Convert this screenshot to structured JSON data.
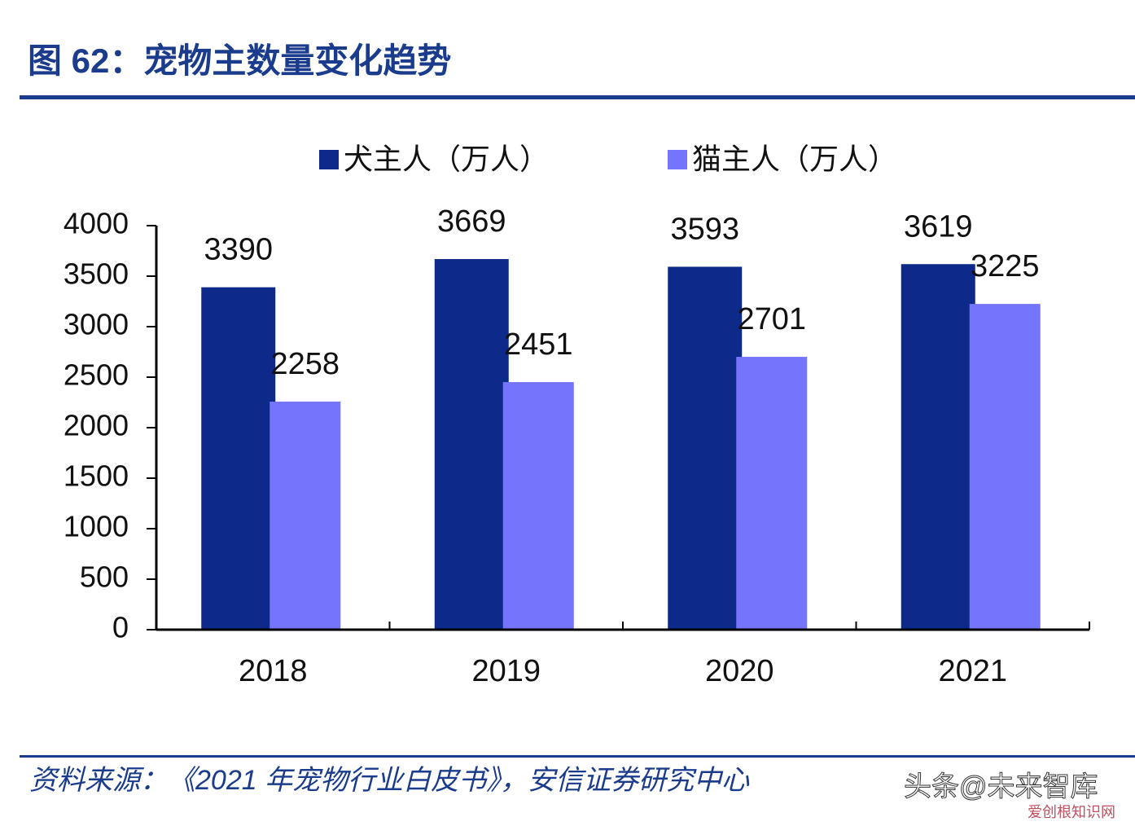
{
  "chart_data": {
    "type": "bar",
    "title": "图 62：宠物主数量变化趋势",
    "categories": [
      "2018",
      "2019",
      "2020",
      "2021"
    ],
    "series": [
      {
        "name": "犬主人（万人）",
        "color": "#0d2a8a",
        "values": [
          3390,
          3669,
          3593,
          3619
        ]
      },
      {
        "name": "猫主人（万人）",
        "color": "#7474fc",
        "values": [
          2258,
          2451,
          2701,
          3225
        ]
      }
    ],
    "ylim": [
      0,
      4000
    ],
    "yticks": [
      0,
      500,
      1000,
      1500,
      2000,
      2500,
      3000,
      3500,
      4000
    ],
    "source": "资料来源：《2021 年宠物行业白皮书》，安信证券研究中心",
    "watermark": "头条@未来智库",
    "watermark2": "爱创根知识网"
  }
}
